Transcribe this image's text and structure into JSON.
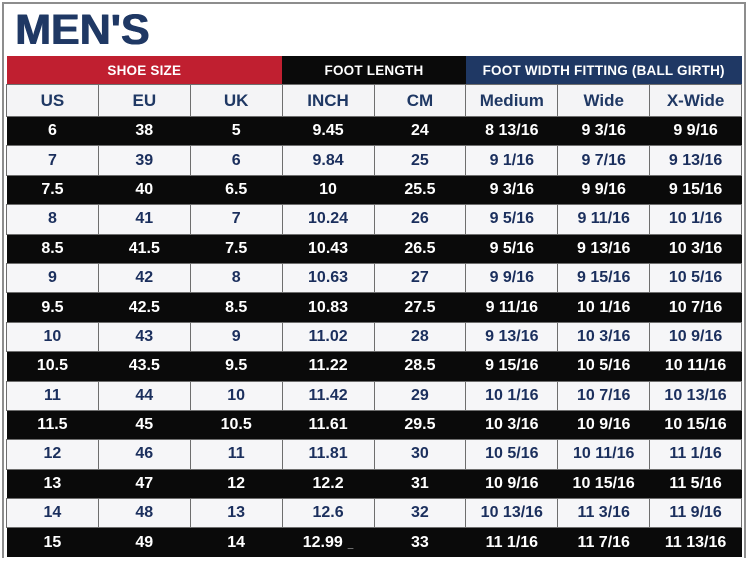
{
  "title": "MEN'S",
  "colors": {
    "navy": "#1f3864",
    "red": "#c01f30",
    "black": "#0a0a0a",
    "light_row_bg": "#f6f6f8",
    "grid_line": "#6e6e6e",
    "frame_border": "#8d8d8d"
  },
  "chart_data": {
    "type": "table",
    "title": "MEN'S",
    "header_groups": [
      {
        "label": "SHOE SIZE",
        "span": 3,
        "color": "#c01f30"
      },
      {
        "label": "FOOT LENGTH",
        "span": 2,
        "color": "#0a0a0a"
      },
      {
        "label": "FOOT WIDTH FITTING (BALL GIRTH)",
        "span": 3,
        "color": "#1f3864"
      }
    ],
    "columns": [
      "US",
      "EU",
      "UK",
      "INCH",
      "CM",
      "Medium",
      "Wide",
      "X-Wide"
    ],
    "rows": [
      [
        "6",
        "38",
        "5",
        "9.45",
        "24",
        "8 13/16",
        "9 3/16",
        "9 9/16"
      ],
      [
        "7",
        "39",
        "6",
        "9.84",
        "25",
        "9 1/16",
        "9 7/16",
        "9 13/16"
      ],
      [
        "7.5",
        "40",
        "6.5",
        "10",
        "25.5",
        "9 3/16",
        "9 9/16",
        "9 15/16"
      ],
      [
        "8",
        "41",
        "7",
        "10.24",
        "26",
        "9 5/16",
        "9 11/16",
        "10 1/16"
      ],
      [
        "8.5",
        "41.5",
        "7.5",
        "10.43",
        "26.5",
        "9 5/16",
        "9 13/16",
        "10 3/16"
      ],
      [
        "9",
        "42",
        "8",
        "10.63",
        "27",
        "9 9/16",
        "9 15/16",
        "10 5/16"
      ],
      [
        "9.5",
        "42.5",
        "8.5",
        "10.83",
        "27.5",
        "9 11/16",
        "10 1/16",
        "10 7/16"
      ],
      [
        "10",
        "43",
        "9",
        "11.02",
        "28",
        "9 13/16",
        "10 3/16",
        "10 9/16"
      ],
      [
        "10.5",
        "43.5",
        "9.5",
        "11.22",
        "28.5",
        "9 15/16",
        "10 5/16",
        "10 11/16"
      ],
      [
        "11",
        "44",
        "10",
        "11.42",
        "29",
        "10 1/16",
        "10 7/16",
        "10 13/16"
      ],
      [
        "11.5",
        "45",
        "10.5",
        "11.61",
        "29.5",
        "10 3/16",
        "10 9/16",
        "10 15/16"
      ],
      [
        "12",
        "46",
        "11",
        "11.81",
        "30",
        "10 5/16",
        "10 11/16",
        "11 1/16"
      ],
      [
        "13",
        "47",
        "12",
        "12.2",
        "31",
        "10 9/16",
        "10 15/16",
        "11 5/16"
      ],
      [
        "14",
        "48",
        "13",
        "12.6",
        "32",
        "10 13/16",
        "11 3/16",
        "11 9/16"
      ],
      [
        "15",
        "49",
        "14",
        "12.99",
        "33",
        "11 1/16",
        "11 7/16",
        "11 13/16"
      ]
    ],
    "stray_mark": "_",
    "stray_mark_location": {
      "row": 14,
      "col": 3
    }
  }
}
